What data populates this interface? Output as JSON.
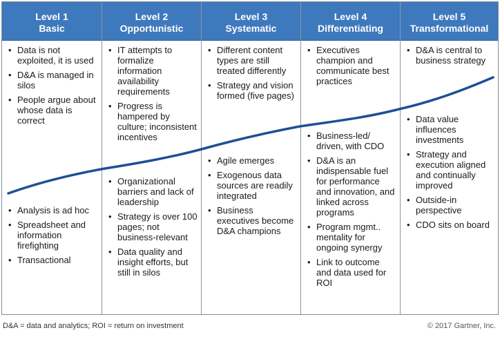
{
  "levels": [
    {
      "number_label": "Level 1",
      "name": "Basic",
      "upper_items": [
        "Data is not exploited, it is used",
        "D&A is managed in silos",
        "People argue about whose data is correct"
      ],
      "lower_items": [
        "Analysis is ad hoc",
        "Spreadsheet and information firefighting",
        "Transactional"
      ]
    },
    {
      "number_label": "Level 2",
      "name": "Opportunistic",
      "upper_items": [
        "IT attempts to formalize information availability requirements",
        "Progress is hampered by culture; inconsistent incentives"
      ],
      "lower_items": [
        "Organizational barriers and lack of leadership",
        "Strategy is over 100 pages; not business-relevant",
        "Data quality and insight efforts, but still in silos"
      ]
    },
    {
      "number_label": "Level 3",
      "name": "Systematic",
      "upper_items": [
        "Different content types are still treated differently",
        "Strategy and vision formed (five pages)"
      ],
      "lower_items": [
        "Agile emerges",
        "Exogenous data sources are readily integrated",
        "Business executives become D&A champions"
      ]
    },
    {
      "number_label": "Level 4",
      "name": "Differentiating",
      "upper_items": [
        "Executives champion and communicate best practices"
      ],
      "lower_items": [
        "Business-led/ driven, with CDO",
        "D&A is an indispensable fuel for performance and innovation, and linked across programs",
        "Program mgmt.. mentality for ongoing synergy",
        "Link to outcome and data used for ROI"
      ]
    },
    {
      "number_label": "Level 5",
      "name": "Transformational",
      "upper_items": [
        "D&A is central to business strategy"
      ],
      "lower_items": [
        "Data value influences investments",
        "Strategy and execution aligned and continually improved",
        "Outside-in perspective",
        "CDO sits on board"
      ]
    }
  ],
  "footnote": "D&A = data and analytics; ROI = return on investment",
  "copyright": "© 2017 Gartner, Inc.",
  "colors": {
    "header_bg": "#3f79bd",
    "header_text": "#ffffff",
    "curve": "#1f4e96",
    "border": "#8a96a3"
  }
}
